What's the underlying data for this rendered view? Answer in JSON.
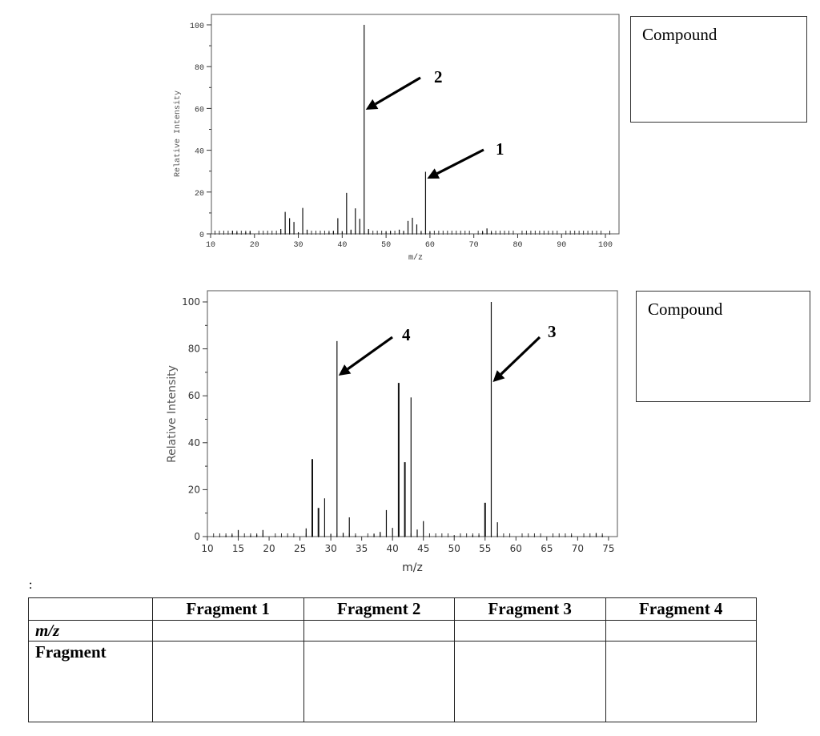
{
  "compound_boxes": [
    {
      "label": "Compound"
    },
    {
      "label": "Compound"
    }
  ],
  "colon": ":",
  "table": {
    "headers": [
      "",
      "Fragment 1",
      "Fragment 2",
      "Fragment 3",
      "Fragment 4"
    ],
    "rows": [
      {
        "label": "m/z",
        "cells": [
          "",
          "",
          "",
          ""
        ]
      },
      {
        "label": "Fragment",
        "cells": [
          "",
          "",
          "",
          ""
        ]
      }
    ]
  },
  "chart_data": [
    {
      "type": "bar",
      "title": "",
      "xlabel": "m/z",
      "ylabel": "Relative Intensity",
      "xlim": [
        10,
        103
      ],
      "ylim": [
        0,
        100
      ],
      "xticks": [
        10,
        20,
        30,
        40,
        50,
        60,
        70,
        80,
        90,
        100
      ],
      "yticks": [
        0,
        20,
        40,
        60,
        80,
        100
      ],
      "grid": false,
      "x": [
        15,
        16,
        18,
        19,
        26,
        27,
        28,
        29,
        30,
        31,
        32,
        37,
        38,
        39,
        40,
        41,
        42,
        43,
        44,
        45,
        46,
        50,
        51,
        53,
        54,
        55,
        56,
        57,
        58,
        59,
        60,
        72,
        73,
        74
      ],
      "values": [
        1.5,
        0.8,
        0.8,
        1.2,
        2.3,
        10.5,
        7.5,
        5.7,
        0.8,
        12.4,
        2,
        0.8,
        1.3,
        7.5,
        1.3,
        19.6,
        2,
        12.2,
        7.2,
        100,
        2.3,
        1.3,
        1.3,
        2,
        1.3,
        6.2,
        7.7,
        4.5,
        1,
        29.7,
        1.3,
        1,
        2.6,
        0.8
      ],
      "annotations": [
        {
          "label": "2",
          "points_to_mz": 45
        },
        {
          "label": "1",
          "points_to_mz": 59
        }
      ]
    },
    {
      "type": "bar",
      "title": "",
      "xlabel": "m/z",
      "ylabel": "Relative Intensity",
      "xlim": [
        10,
        76
      ],
      "ylim": [
        0,
        100
      ],
      "xticks": [
        10,
        15,
        20,
        25,
        30,
        35,
        40,
        45,
        50,
        55,
        60,
        65,
        70,
        75
      ],
      "yticks": [
        0,
        20,
        40,
        60,
        80,
        100
      ],
      "grid": false,
      "x": [
        13,
        14,
        15,
        17,
        18,
        19,
        26,
        27,
        28,
        29,
        30,
        31,
        32,
        33,
        34,
        37,
        38,
        39,
        40,
        41,
        42,
        43,
        44,
        45,
        50,
        53,
        54,
        55,
        56,
        57,
        69,
        73,
        74
      ],
      "values": [
        0.5,
        0.8,
        2.8,
        0.5,
        0.8,
        2.8,
        3.5,
        33,
        12.2,
        16.3,
        1.2,
        83.3,
        1.6,
        8.2,
        0.5,
        1,
        2,
        11.3,
        3.7,
        65.5,
        31.7,
        59.3,
        3,
        6.6,
        0.6,
        0.6,
        0.6,
        14.4,
        100,
        6.1,
        0.5,
        1.5,
        0.5
      ],
      "annotations": [
        {
          "label": "4",
          "points_to_mz": 31
        },
        {
          "label": "3",
          "points_to_mz": 56
        }
      ]
    }
  ]
}
